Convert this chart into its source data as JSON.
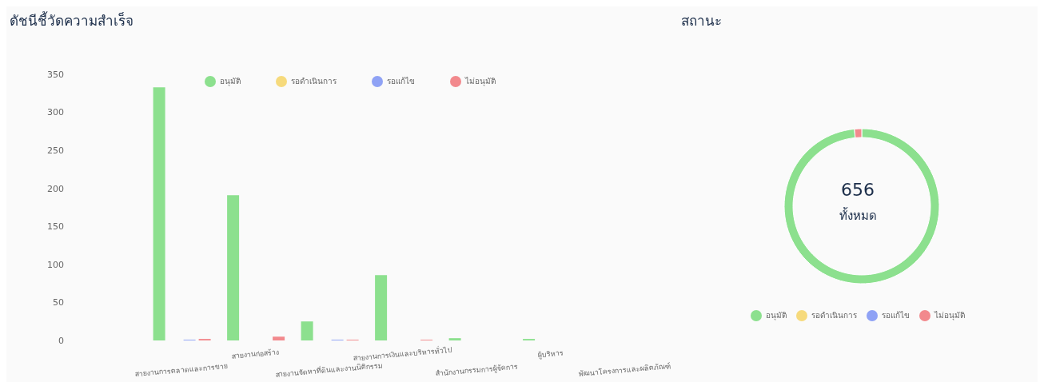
{
  "chart_data": [
    {
      "type": "bar",
      "title": "ดัชนีชี้วัดความสำเร็จ",
      "categories": [
        null,
        "สายงานการตลาดและการขาย",
        "สายงานก่อสร้าง",
        "สายงานจัดหาที่ดินและงานนิติกรรม",
        "สายงานการเงินและบริหารทั่วไป",
        "สำนักงานกรรมการผู้จัดการ",
        "ผู้บริหาร",
        "พัฒนาโครงการและผลิตภัณฑ์"
      ],
      "series": [
        {
          "name": "อนุมัติ",
          "color": "#8ce08e",
          "values": [
            0,
            333,
            191,
            25,
            86,
            3,
            2,
            0
          ]
        },
        {
          "name": "รอดำเนินการ",
          "color": "#f6da7c",
          "values": [
            0,
            0,
            0,
            0,
            0,
            0,
            0,
            0
          ]
        },
        {
          "name": "รอแก้ไข",
          "color": "#8fa2f5",
          "values": [
            0,
            1,
            0,
            1,
            0,
            0,
            0,
            0
          ]
        },
        {
          "name": "ไม่อนุมัติ",
          "color": "#f2898d",
          "values": [
            0,
            2,
            5,
            1,
            1,
            0,
            0,
            0
          ]
        }
      ],
      "ylim": [
        0,
        350
      ],
      "yticks": [
        0,
        50,
        100,
        150,
        200,
        250,
        300,
        350
      ],
      "legend": "top"
    },
    {
      "type": "donut",
      "title": "สถานะ",
      "categories": [
        "อนุมัติ",
        "รอดำเนินการ",
        "รอแก้ไข",
        "ไม่อนุมัติ"
      ],
      "values": [
        98.5,
        0,
        0,
        1.5
      ],
      "colors": [
        "#8ce08e",
        "#f6da7c",
        "#8fa2f5",
        "#f2898d"
      ],
      "legend": "bottom",
      "annotations": [
        "656",
        "ทั้งหมด"
      ]
    }
  ]
}
